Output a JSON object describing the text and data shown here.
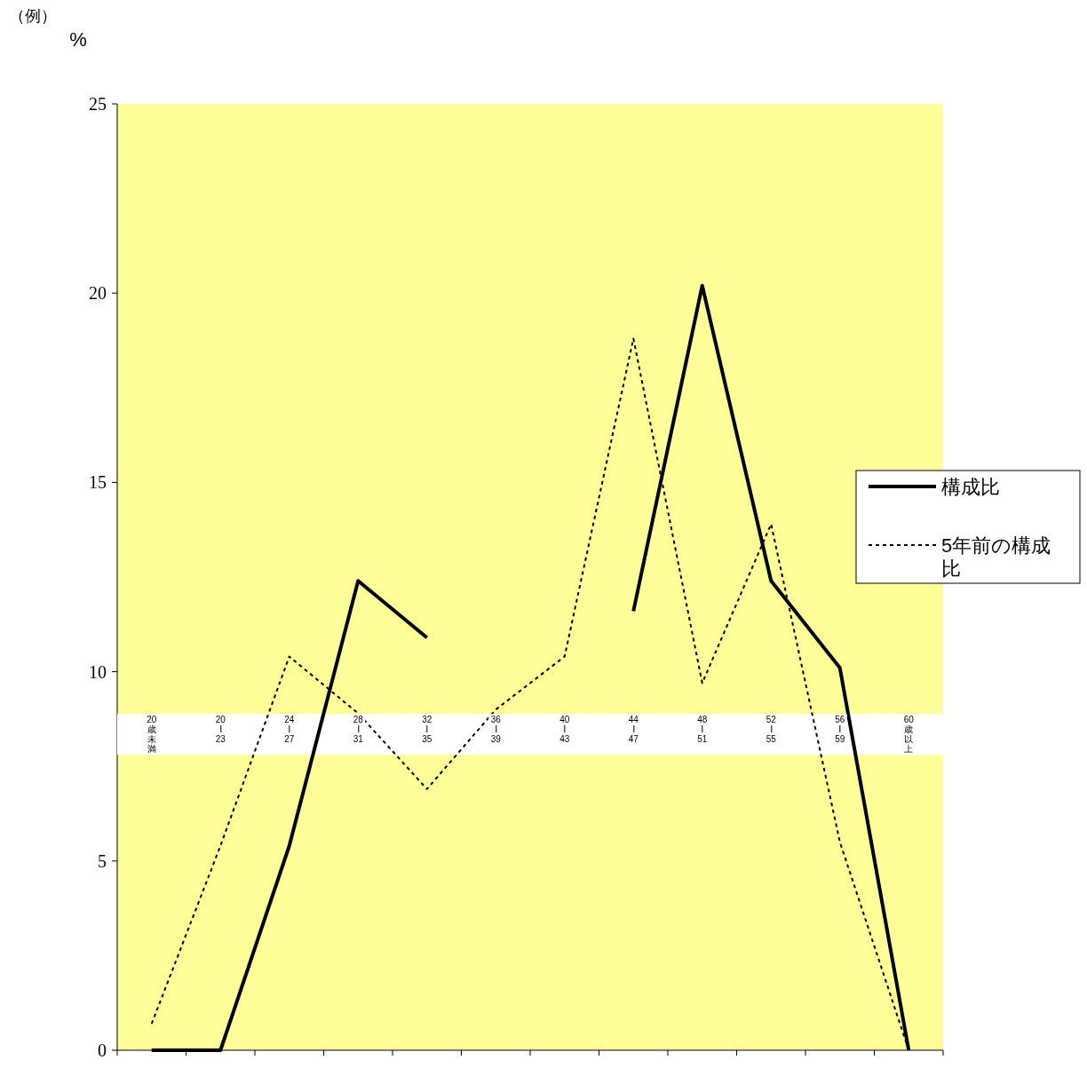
{
  "chart_data": {
    "type": "line",
    "ylabel": "%",
    "annotations": [
      "（例）"
    ],
    "categories": [
      "20歳未満",
      "20ー23",
      "24ー27",
      "28ー31",
      "32ー35",
      "36ー39",
      "40ー43",
      "44ー47",
      "48ー51",
      "52ー55",
      "56ー59",
      "60歳以上"
    ],
    "series": [
      {
        "name": "構成比",
        "color": "#000000",
        "line_style": "solid",
        "values": [
          0,
          0,
          5.4,
          12.4,
          10.9,
          null,
          null,
          11.6,
          20.2,
          12.4,
          10.1,
          0
        ]
      },
      {
        "name": "5年前の構成比",
        "color": "#000000",
        "line_style": "dotted",
        "values": [
          0.7,
          5.4,
          10.4,
          8.9,
          6.9,
          9.0,
          10.4,
          18.8,
          9.7,
          13.9,
          5.5,
          0
        ]
      }
    ],
    "ylim": [
      0,
      25
    ],
    "yticks": [
      0,
      5,
      10,
      15,
      20,
      25
    ],
    "grid": false,
    "legend": "right",
    "marker": "none"
  }
}
